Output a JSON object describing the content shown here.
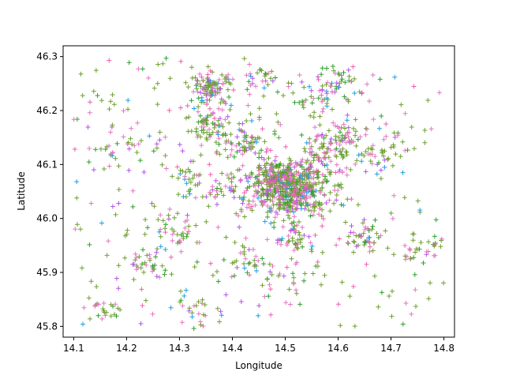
{
  "chart_data": {
    "type": "scatter",
    "marker": "+",
    "title": "",
    "xlabel": "Longitude",
    "ylabel": "Latitude",
    "xlim": [
      14.08,
      14.82
    ],
    "ylim": [
      45.78,
      46.32
    ],
    "grid": false,
    "legend": "none",
    "x_ticks": [
      "14.1",
      "14.2",
      "14.3",
      "14.4",
      "14.5",
      "14.6",
      "14.7",
      "14.8"
    ],
    "y_ticks": [
      "45.8",
      "45.9",
      "46.0",
      "46.1",
      "46.2",
      "46.3"
    ],
    "series_colors": [
      "#e377c2",
      "#6fa02f",
      "#2ca02c",
      "#1f9ee8",
      "#b455e8",
      "#f05fb0"
    ],
    "clusters": [
      {
        "lon": 14.515,
        "lat": 46.055,
        "spread": 0.035,
        "count": 520
      },
      {
        "lon": 14.48,
        "lat": 46.07,
        "spread": 0.02,
        "count": 160
      },
      {
        "lon": 14.36,
        "lat": 46.24,
        "spread": 0.02,
        "count": 110
      },
      {
        "lon": 14.36,
        "lat": 46.17,
        "spread": 0.025,
        "count": 70
      },
      {
        "lon": 14.6,
        "lat": 46.15,
        "spread": 0.025,
        "count": 70
      },
      {
        "lon": 14.43,
        "lat": 46.14,
        "spread": 0.02,
        "count": 55
      },
      {
        "lon": 14.52,
        "lat": 45.96,
        "spread": 0.02,
        "count": 45
      },
      {
        "lon": 14.65,
        "lat": 45.96,
        "spread": 0.02,
        "count": 40
      },
      {
        "lon": 14.3,
        "lat": 45.97,
        "spread": 0.02,
        "count": 35
      },
      {
        "lon": 14.23,
        "lat": 45.92,
        "spread": 0.015,
        "count": 25
      },
      {
        "lon": 14.6,
        "lat": 46.25,
        "spread": 0.02,
        "count": 35
      },
      {
        "lon": 14.68,
        "lat": 46.12,
        "spread": 0.025,
        "count": 40
      },
      {
        "lon": 14.75,
        "lat": 45.94,
        "spread": 0.02,
        "count": 25
      },
      {
        "lon": 14.18,
        "lat": 46.12,
        "spread": 0.02,
        "count": 20
      },
      {
        "lon": 14.4,
        "lat": 46.05,
        "spread": 0.03,
        "count": 45
      },
      {
        "lon": 14.56,
        "lat": 46.22,
        "spread": 0.025,
        "count": 35
      },
      {
        "lon": 14.45,
        "lat": 46.26,
        "spread": 0.02,
        "count": 25
      },
      {
        "lon": 14.33,
        "lat": 45.83,
        "spread": 0.02,
        "count": 20
      },
      {
        "lon": 14.16,
        "lat": 45.83,
        "spread": 0.02,
        "count": 20
      },
      {
        "lon": 14.5,
        "lat": 45.88,
        "spread": 0.03,
        "count": 30
      },
      {
        "lon": 14.42,
        "lat": 45.92,
        "spread": 0.02,
        "count": 25
      },
      {
        "lon": 14.32,
        "lat": 46.07,
        "spread": 0.02,
        "count": 30
      },
      {
        "lon": 14.57,
        "lat": 46.12,
        "spread": 0.03,
        "count": 40
      }
    ],
    "background_points": 340
  }
}
